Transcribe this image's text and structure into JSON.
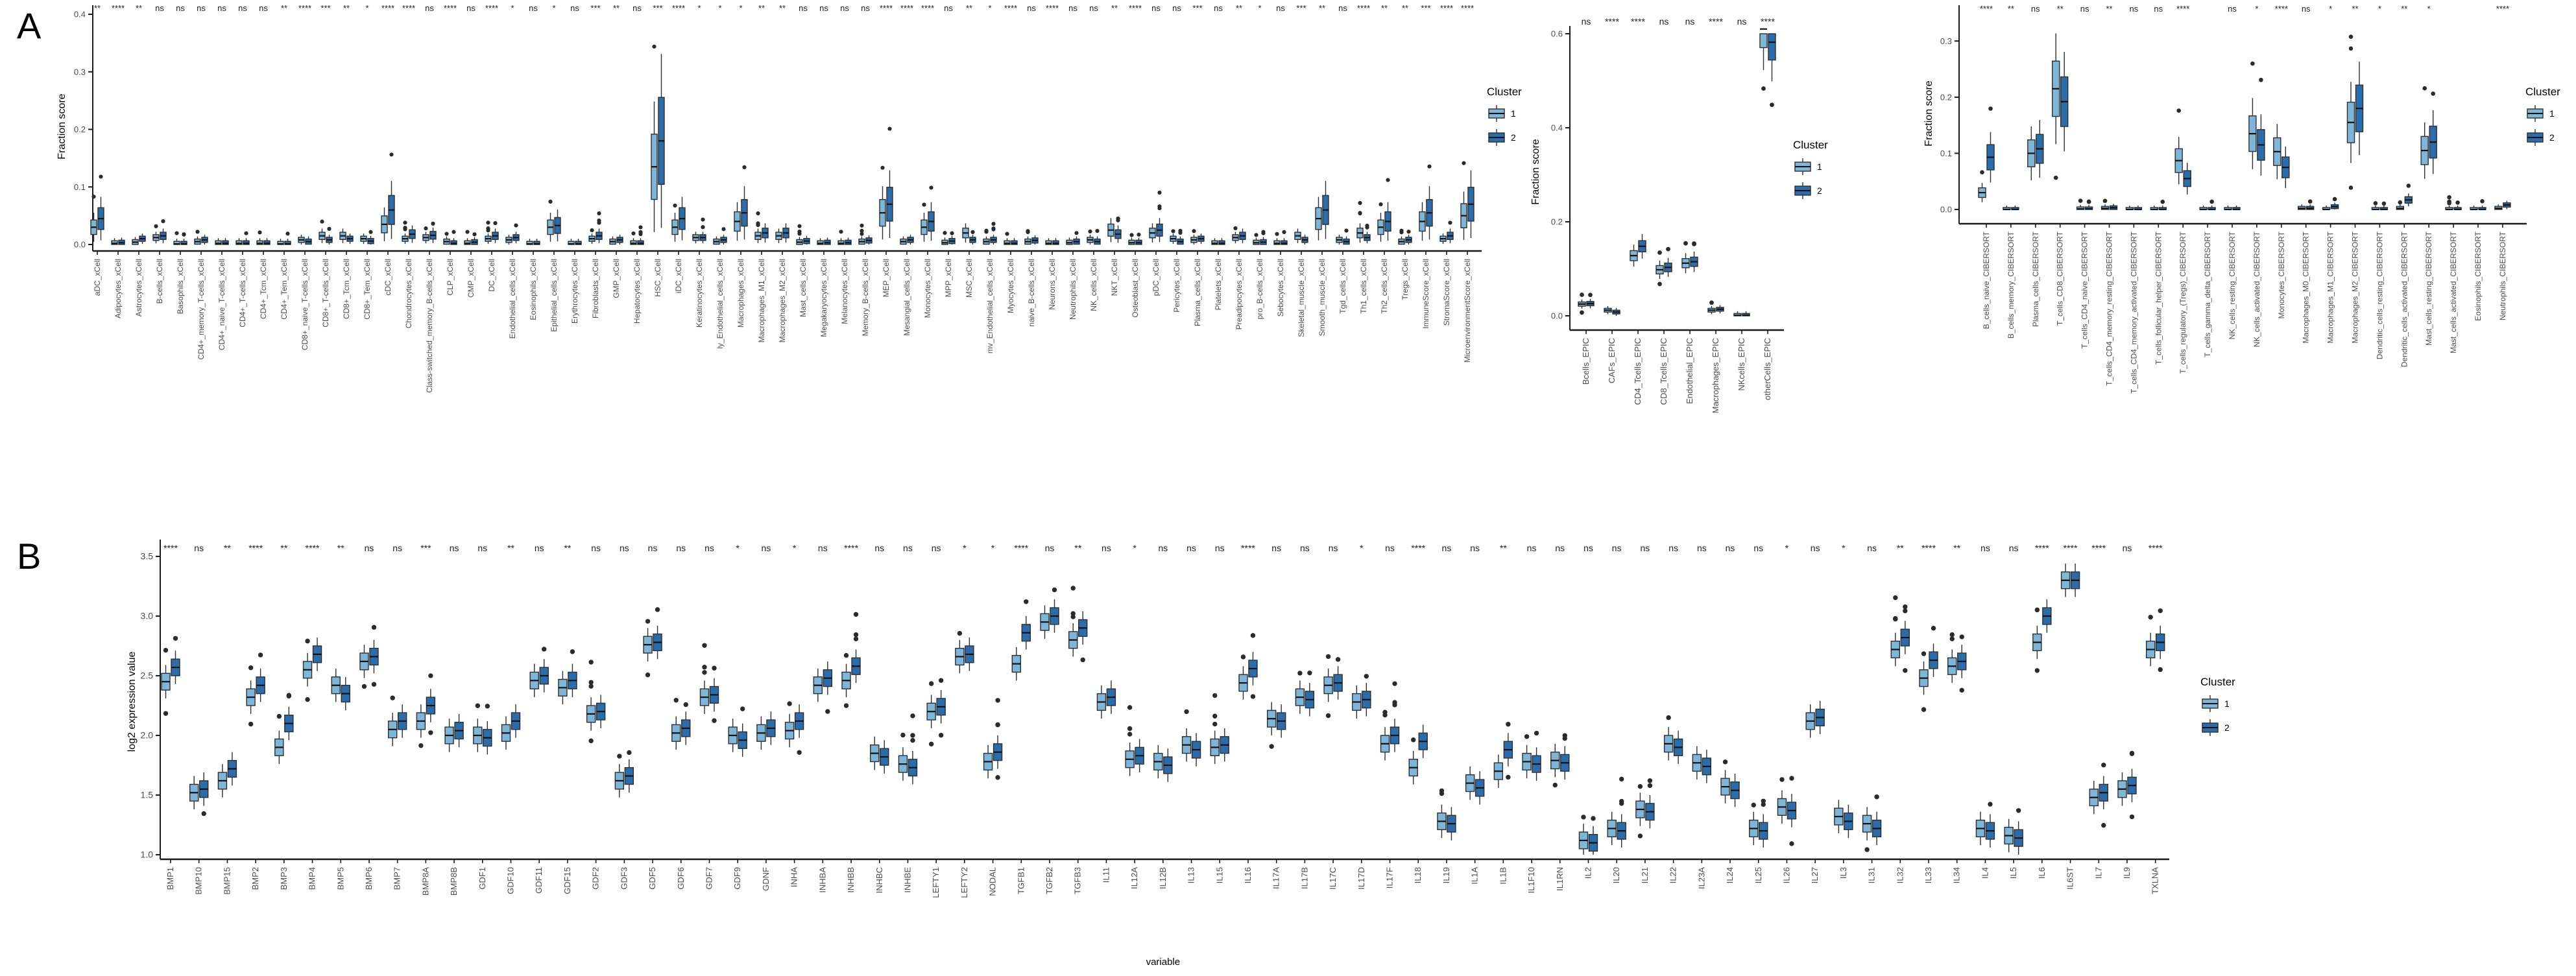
{
  "panels": {
    "a": "A",
    "b": "B"
  },
  "legend": {
    "title": "Cluster",
    "items": [
      {
        "label": "1",
        "color": "#7db6d9"
      },
      {
        "label": "2",
        "color": "#2b6dab"
      }
    ]
  },
  "colors": {
    "cluster1_fill": "#7db6d9",
    "cluster2_fill": "#2b6dab",
    "box_outline": "#2e2e2e",
    "axis_line": "#1a1a1a",
    "axis_text": "#4d4d4d",
    "sig_text": "#222222",
    "outlier_dot": "#2b2b2b",
    "background": "#ffffff"
  },
  "chart_data": [
    {
      "id": "xcell",
      "type": "box",
      "title": "",
      "ylabel": "Fraction score",
      "xlabel": "",
      "ylim": [
        0,
        0.4
      ],
      "yticks": [
        "0.0",
        "0.1",
        "0.2",
        "0.3",
        "0.4"
      ],
      "grid": false,
      "legend_position": "right",
      "categories": [
        "aDC_xCell",
        "Adipocytes_xCell",
        "Astrocytes_xCell",
        "B-cells_xCell",
        "Basophils_xCell",
        "CD4+_memory_T-cells_xCell",
        "CD4+_naive_T-cells_xCell",
        "CD4+_T-cells_xCell",
        "CD4+_Tcm_xCell",
        "CD4+_Tem_xCell",
        "CD8+_naive_T-cells_xCell",
        "CD8+_T-cells_xCell",
        "CD8+_Tcm_xCell",
        "CD8+_Tem_xCell",
        "cDC_xCell",
        "Chondrocytes_xCell",
        "Class-switched_memory_B-cells_xCell",
        "CLP_xCell",
        "CMP_xCell",
        "DC_xCell",
        "Endothelial_cells_xCell",
        "Eosinophils_xCell",
        "Epithelial_cells_xCell",
        "Erythrocytes_xCell",
        "Fibroblasts_xCell",
        "GMP_xCell",
        "Hepatocytes_xCell",
        "HSC_xCell",
        "iDC_xCell",
        "Keratinocytes_xCell",
        "ly_Endothelial_cells_xCell",
        "Macrophages_xCell",
        "Macrophages_M1_xCell",
        "Macrophages_M2_xCell",
        "Mast_cells_xCell",
        "Megakaryocytes_xCell",
        "Melanocytes_xCell",
        "Memory_B-cells_xCell",
        "MEP_xCell",
        "Mesangial_cells_xCell",
        "Monocytes_xCell",
        "MPP_xCell",
        "MSC_xCell",
        "mv_Endothelial_cells_xCell",
        "Myocytes_xCell",
        "naive_B-cells_xCell",
        "Neurons_xCell",
        "Neutrophils_xCell",
        "NK_cells_xCell",
        "NKT_xCell",
        "Osteoblast_xCell",
        "pDC_xCell",
        "Pericytes_xCell",
        "Plasma_cells_xCell",
        "Platelets_xCell",
        "Preadipocytes_xCell",
        "pro_B-cells_xCell",
        "Sebocytes_xCell",
        "Skeletal_muscle_xCell",
        "Smooth_muscle_xCell",
        "Tgd_cells_xCell",
        "Th1_cells_xCell",
        "Th2_cells_xCell",
        "Tregs_xCell",
        "ImmuneScore_xCell",
        "StromaScore_xCell",
        "MicroenvironmentScore_xCell"
      ],
      "significance": [
        "**",
        "****",
        "**",
        "ns",
        "ns",
        "ns",
        "ns",
        "ns",
        "ns",
        "**",
        "****",
        "***",
        "**",
        "*",
        "****",
        "****",
        "ns",
        "****",
        "ns",
        "****",
        "*",
        "ns",
        "*",
        "ns",
        "***",
        "**",
        "ns",
        "***",
        "****",
        "*",
        "*",
        "*",
        "**",
        "**",
        "ns",
        "ns",
        "ns",
        "ns",
        "****",
        "****",
        "****",
        "ns",
        "**",
        "*",
        "****",
        "ns",
        "****",
        "ns",
        "ns",
        "**",
        "****",
        "ns",
        "ns",
        "***",
        "ns",
        "**",
        "*",
        "ns",
        "***",
        "**",
        "ns",
        "****",
        "**",
        "**",
        "***",
        "****",
        "****"
      ],
      "series": [
        {
          "name": "1",
          "medians": [
            0.03,
            0.002,
            0.004,
            0.012,
            0.001,
            0.005,
            0.002,
            0.002,
            0.002,
            0.001,
            0.008,
            0.015,
            0.015,
            0.01,
            0.035,
            0.01,
            0.012,
            0.005,
            0.002,
            0.01,
            0.008,
            0.001,
            0.03,
            0.001,
            0.01,
            0.005,
            0.002,
            0.135,
            0.03,
            0.012,
            0.005,
            0.04,
            0.015,
            0.015,
            0.004,
            0.002,
            0.002,
            0.005,
            0.055,
            0.005,
            0.03,
            0.003,
            0.02,
            0.005,
            0.002,
            0.005,
            0.002,
            0.003,
            0.008,
            0.025,
            0.003,
            0.02,
            0.01,
            0.008,
            0.002,
            0.012,
            0.003,
            0.002,
            0.015,
            0.045,
            0.008,
            0.02,
            0.03,
            0.005,
            0.04,
            0.01,
            0.05
          ]
        },
        {
          "name": "2",
          "medians": [
            0.045,
            0.003,
            0.01,
            0.015,
            0.001,
            0.008,
            0.002,
            0.002,
            0.002,
            0.001,
            0.005,
            0.008,
            0.01,
            0.006,
            0.06,
            0.018,
            0.016,
            0.002,
            0.004,
            0.015,
            0.012,
            0.001,
            0.033,
            0.001,
            0.015,
            0.008,
            0.002,
            0.18,
            0.045,
            0.012,
            0.008,
            0.055,
            0.02,
            0.02,
            0.006,
            0.003,
            0.003,
            0.007,
            0.07,
            0.008,
            0.04,
            0.006,
            0.008,
            0.008,
            0.002,
            0.007,
            0.002,
            0.005,
            0.005,
            0.018,
            0.003,
            0.025,
            0.005,
            0.01,
            0.002,
            0.015,
            0.004,
            0.002,
            0.008,
            0.06,
            0.005,
            0.012,
            0.04,
            0.008,
            0.055,
            0.015,
            0.07
          ]
        }
      ]
    },
    {
      "id": "epic",
      "type": "box",
      "title": "",
      "ylabel": "Fraction score",
      "xlabel": "",
      "ylim": [
        0,
        0.6
      ],
      "yticks": [
        "0.0",
        "0.2",
        "0.4",
        "0.6"
      ],
      "grid": false,
      "legend_position": "right",
      "categories": [
        "Bcells_EPIC",
        "CAFs_EPIC",
        "CD4_Tcells_EPIC",
        "CD8_Tcells_EPIC",
        "Endothelial_EPIC",
        "Macrophages_EPIC",
        "NKcells_EPIC",
        "otherCells_EPIC"
      ],
      "significance": [
        "ns",
        "****",
        "****",
        "ns",
        "ns",
        "****",
        "ns",
        "****"
      ],
      "series": [
        {
          "name": "1",
          "medians": [
            0.025,
            0.012,
            0.128,
            0.098,
            0.112,
            0.012,
            0.001,
            0.61
          ]
        },
        {
          "name": "2",
          "medians": [
            0.026,
            0.008,
            0.148,
            0.103,
            0.115,
            0.014,
            0.001,
            0.582
          ]
        }
      ]
    },
    {
      "id": "cibersort",
      "type": "box",
      "title": "",
      "ylabel": "Fraction score",
      "xlabel": "",
      "ylim": [
        0,
        0.35
      ],
      "yticks": [
        "0.0",
        "0.1",
        "0.2",
        "0.3"
      ],
      "grid": false,
      "legend_position": "right",
      "categories": [
        "B_cells_naive_CIBERSORT",
        "B_cells_memory_CIBERSORT",
        "Plasma_cells_CIBERSORT",
        "T_cells_CD8_CIBERSORT",
        "T_cells_CD4_naive_CIBERSORT",
        "T_cells_CD4_memory_resting_CIBERSORT",
        "T_cells_CD4_memory_activated_CIBERSORT",
        "T_cells_follicular_helper_CIBERSORT",
        "T_cells_regulatory_(Tregs)_CIBERSORT",
        "T_cells_gamma_delta_CIBERSORT",
        "NK_cells_resting_CIBERSORT",
        "NK_cells_activated_CIBERSORT",
        "Monocytes_CIBERSORT",
        "Macrophages_M0_CIBERSORT",
        "Macrophages_M1_CIBERSORT",
        "Macrophages_M2_CIBERSORT",
        "Dendritic_cells_resting_CIBERSORT",
        "Dendritic_cells_activated_CIBERSORT",
        "Mast_cells_resting_CIBERSORT",
        "Mast_cells_activated_CIBERSORT",
        "Eosinophils_CIBERSORT",
        "Neutrophils_CIBERSORT"
      ],
      "significance": [
        "****",
        "**",
        "ns",
        "**",
        "ns",
        "**",
        "ns",
        "ns",
        "****",
        "",
        "ns",
        "*",
        "****",
        "ns",
        "*",
        "**",
        "*",
        "**",
        "*",
        "",
        "",
        "****"
      ],
      "series": [
        {
          "name": "1",
          "medians": [
            0.03,
            0.0,
            0.1,
            0.215,
            0.001,
            0.002,
            0.0,
            0.0,
            0.087,
            0.0,
            0.0,
            0.135,
            0.103,
            0.002,
            0.0,
            0.155,
            0.0,
            0.002,
            0.105,
            0.0,
            0.0,
            0.002
          ]
        },
        {
          "name": "2",
          "medians": [
            0.093,
            0.0,
            0.108,
            0.192,
            0.001,
            0.003,
            0.0,
            0.0,
            0.055,
            0.0,
            0.0,
            0.115,
            0.075,
            0.002,
            0.005,
            0.18,
            0.0,
            0.017,
            0.12,
            0.0,
            0.0,
            0.008
          ]
        }
      ]
    },
    {
      "id": "expr",
      "type": "box",
      "title": "",
      "ylabel": "log2 expression value",
      "xlabel": "variable",
      "ylim": [
        1.0,
        3.5
      ],
      "yticks": [
        "1.0",
        "1.5",
        "2.0",
        "2.5",
        "3.0",
        "3.5"
      ],
      "grid": false,
      "legend_position": "right",
      "categories": [
        "BMP1",
        "BMP10",
        "BMP15",
        "BMP2",
        "BMP3",
        "BMP4",
        "BMP5",
        "BMP6",
        "BMP7",
        "BMP8A",
        "BMP8B",
        "GDF1",
        "GDF10",
        "GDF11",
        "GDF15",
        "GDF2",
        "GDF3",
        "GDF5",
        "GDF6",
        "GDF7",
        "GDF9",
        "GDNF",
        "INHA",
        "INHBA",
        "INHBB",
        "INHBC",
        "INHBE",
        "LEFTY1",
        "LEFTY2",
        "NODAL",
        "TGFB1",
        "TGFB2",
        "TGFB3",
        "IL11",
        "IL12A",
        "IL12B",
        "IL13",
        "IL15",
        "IL16",
        "IL17A",
        "IL17B",
        "IL17C",
        "IL17D",
        "IL17F",
        "IL18",
        "IL19",
        "IL1A",
        "IL1B",
        "IL1F10",
        "IL1RN",
        "IL2",
        "IL20",
        "IL21",
        "IL22",
        "IL23A",
        "IL24",
        "IL25",
        "IL26",
        "IL27",
        "IL3",
        "IL31",
        "IL32",
        "IL33",
        "IL34",
        "IL4",
        "IL5",
        "IL6",
        "IL6ST",
        "IL7",
        "IL9",
        "TXLNA"
      ],
      "significance": [
        "****",
        "ns",
        "**",
        "****",
        "**",
        "****",
        "**",
        "ns",
        "ns",
        "***",
        "ns",
        "ns",
        "**",
        "ns",
        "**",
        "ns",
        "ns",
        "ns",
        "ns",
        "ns",
        "*",
        "ns",
        "*",
        "ns",
        "****",
        "ns",
        "ns",
        "ns",
        "*",
        "*",
        "****",
        "ns",
        "**",
        "ns",
        "*",
        "ns",
        "ns",
        "ns",
        "****",
        "ns",
        "ns",
        "ns",
        "*",
        "ns",
        "****",
        "ns",
        "ns",
        "**",
        "ns",
        "ns",
        "ns",
        "ns",
        "ns",
        "ns",
        "ns",
        "ns",
        "ns",
        "*",
        "ns",
        "*",
        "ns",
        "**",
        "****",
        "**",
        "ns",
        "ns",
        "****",
        "****",
        "****",
        "ns",
        "****"
      ],
      "series": [
        {
          "name": "1",
          "medians": [
            2.45,
            1.52,
            1.62,
            2.32,
            1.9,
            2.55,
            2.42,
            2.62,
            2.05,
            2.12,
            2.0,
            2.0,
            2.02,
            2.46,
            2.4,
            2.18,
            1.62,
            2.76,
            2.02,
            2.32,
            2.0,
            2.02,
            2.04,
            2.42,
            2.46,
            1.85,
            1.76,
            2.2,
            2.66,
            1.78,
            2.6,
            2.95,
            2.8,
            2.28,
            1.8,
            1.78,
            1.92,
            1.9,
            2.44,
            2.14,
            2.32,
            2.42,
            2.28,
            1.93,
            1.73,
            1.28,
            1.6,
            1.7,
            1.78,
            1.79,
            1.12,
            1.22,
            1.38,
            1.93,
            1.77,
            1.57,
            1.22,
            1.4,
            2.12,
            1.32,
            1.26,
            2.72,
            2.48,
            2.58,
            1.22,
            1.16,
            2.78,
            3.3,
            1.48,
            1.55,
            2.72
          ]
        },
        {
          "name": "2",
          "medians": [
            2.57,
            1.55,
            1.72,
            2.42,
            2.1,
            2.68,
            2.35,
            2.66,
            2.12,
            2.25,
            2.04,
            1.98,
            2.12,
            2.5,
            2.46,
            2.2,
            1.66,
            2.78,
            2.06,
            2.34,
            1.96,
            2.06,
            2.12,
            2.48,
            2.58,
            1.82,
            1.73,
            2.24,
            2.68,
            1.86,
            2.86,
            3.0,
            2.9,
            2.32,
            1.83,
            1.75,
            1.88,
            1.92,
            2.56,
            2.12,
            2.3,
            2.44,
            2.3,
            2.0,
            1.95,
            1.26,
            1.56,
            1.88,
            1.76,
            1.77,
            1.1,
            1.2,
            1.36,
            1.9,
            1.74,
            1.54,
            1.2,
            1.37,
            2.15,
            1.28,
            1.22,
            2.82,
            2.63,
            2.62,
            1.2,
            1.14,
            3.0,
            3.3,
            1.52,
            1.58,
            2.78
          ]
        }
      ]
    }
  ]
}
